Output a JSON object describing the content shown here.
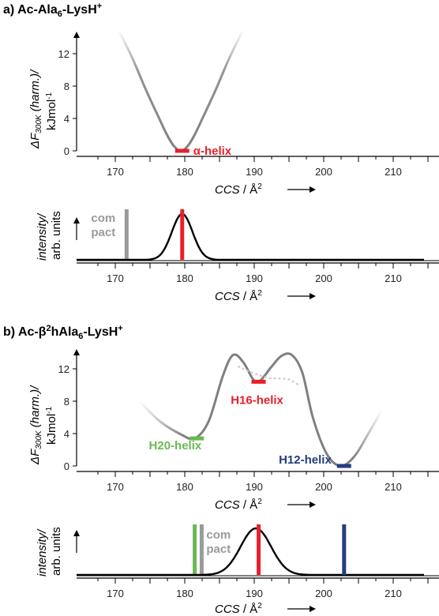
{
  "panels": [
    {
      "title": "a) Ac-Ala",
      "title_sub": "6",
      "title_rest": "-LysH",
      "title_sup": "+",
      "energy_ylabel": {
        "delta": "ΔF",
        "sub": "300K",
        "rest": " (harm.)/",
        "unit": "kJmol",
        "unit_sup": "-1"
      },
      "energy_yticks": [
        "0",
        "4",
        "8",
        "12"
      ],
      "xticks": [
        "170",
        "180",
        "190",
        "200",
        "210"
      ],
      "xlabel": {
        "ccs": "CCS",
        "rest": " / Å",
        "sup": "2"
      },
      "intensity_ylabel": {
        "line1": "intensity/",
        "line2": "arb. units"
      },
      "compact_label": [
        "com",
        "pact"
      ]
    },
    {
      "title": "b) Ac-β",
      "title_sup1": "2",
      "title_mid": "hAla",
      "title_sub": "6",
      "title_rest": "-LysH",
      "title_sup": "+",
      "energy_ylabel": {
        "delta": "ΔF",
        "sub": "300K",
        "rest": " (harm.)/",
        "unit": "kJmol",
        "unit_sup": "-1"
      },
      "energy_yticks": [
        "0",
        "4",
        "8",
        "12"
      ],
      "xticks": [
        "170",
        "180",
        "190",
        "200",
        "210"
      ],
      "xlabel": {
        "ccs": "CCS",
        "rest": " / Å",
        "sup": "2"
      },
      "intensity_ylabel": {
        "line1": "intensity/",
        "line2": "arb. units"
      },
      "compact_label": [
        "com",
        "pact"
      ]
    }
  ],
  "chart_data": [
    {
      "type": "line",
      "panel": "a",
      "xlabel": "CCS / Å²",
      "ylabel": "ΔF300K (harm.)/ kJmol-1",
      "xlim": [
        165,
        215
      ],
      "ylim": [
        0,
        14
      ],
      "curve_x": [
        171,
        173,
        175,
        177,
        178,
        179,
        180,
        181,
        182,
        183,
        185,
        187,
        189
      ],
      "curve_y": [
        15,
        11.5,
        7.5,
        3.8,
        2.0,
        0.6,
        0,
        0.6,
        2.0,
        3.8,
        7.5,
        11.5,
        15
      ],
      "color": "#808080",
      "states": [
        {
          "label": "α-helix",
          "ccs": 180.2,
          "energy": 0,
          "color": "#e8202a"
        }
      ]
    },
    {
      "type": "line",
      "panel": "a",
      "xlabel": "CCS / Å²",
      "ylabel": "intensity/ arb. units",
      "xlim": [
        165,
        215
      ],
      "peaks": [
        {
          "center": 180.2,
          "sigma": 1.5,
          "height": 1.0
        }
      ],
      "markers": [
        {
          "label": "compact",
          "ccs": 172.2,
          "color": "#9a9a9a"
        },
        {
          "label": "α-helix",
          "ccs": 180.2,
          "color": "#e8202a"
        }
      ]
    },
    {
      "type": "line",
      "panel": "b",
      "xlabel": "CCS / Å²",
      "ylabel": "ΔF300K (harm.)/ kJmol-1",
      "xlim": [
        165,
        215
      ],
      "ylim": [
        0,
        14
      ],
      "curve_x": [
        174,
        177,
        180,
        182,
        184,
        186,
        187.5,
        189,
        190.5,
        191.5,
        193,
        194.5,
        196,
        197.5,
        199,
        201,
        203,
        205,
        207,
        209
      ],
      "curve_y": [
        8,
        5.5,
        3.9,
        3.4,
        5.5,
        11,
        13.7,
        12.8,
        10.6,
        10.6,
        12.2,
        13.6,
        13.7,
        11.5,
        6,
        1.5,
        0,
        1.2,
        4.0,
        7
      ],
      "dotted_x": [
        188.2,
        189.5,
        191,
        192.5,
        194,
        195.5,
        197
      ],
      "dotted_y": [
        12.3,
        11.8,
        11.3,
        10.9,
        10.8,
        10.7,
        10.0
      ],
      "color": "#808080",
      "states": [
        {
          "label": "H20-helix",
          "ccs": 182.3,
          "energy": 3.4,
          "color": "#6ab951"
        },
        {
          "label": "H16-helix",
          "ccs": 191.2,
          "energy": 10.4,
          "color": "#e8202a"
        },
        {
          "label": "H12-helix",
          "ccs": 203.5,
          "energy": 0,
          "color": "#233d7f"
        }
      ]
    },
    {
      "type": "line",
      "panel": "b",
      "xlabel": "CCS / Å²",
      "ylabel": "intensity/ arb. units",
      "xlim": [
        165,
        215
      ],
      "peaks": [
        {
          "center": 190.8,
          "sigma": 2.2,
          "height": 1.0
        }
      ],
      "markers": [
        {
          "label": "H20-helix",
          "ccs": 182.0,
          "color": "#6ab951"
        },
        {
          "label": "compact",
          "ccs": 183.0,
          "color": "#9a9a9a"
        },
        {
          "label": "H16-helix",
          "ccs": 191.2,
          "color": "#e8202a"
        },
        {
          "label": "H12-helix",
          "ccs": 203.5,
          "color": "#233d7f"
        }
      ]
    }
  ]
}
